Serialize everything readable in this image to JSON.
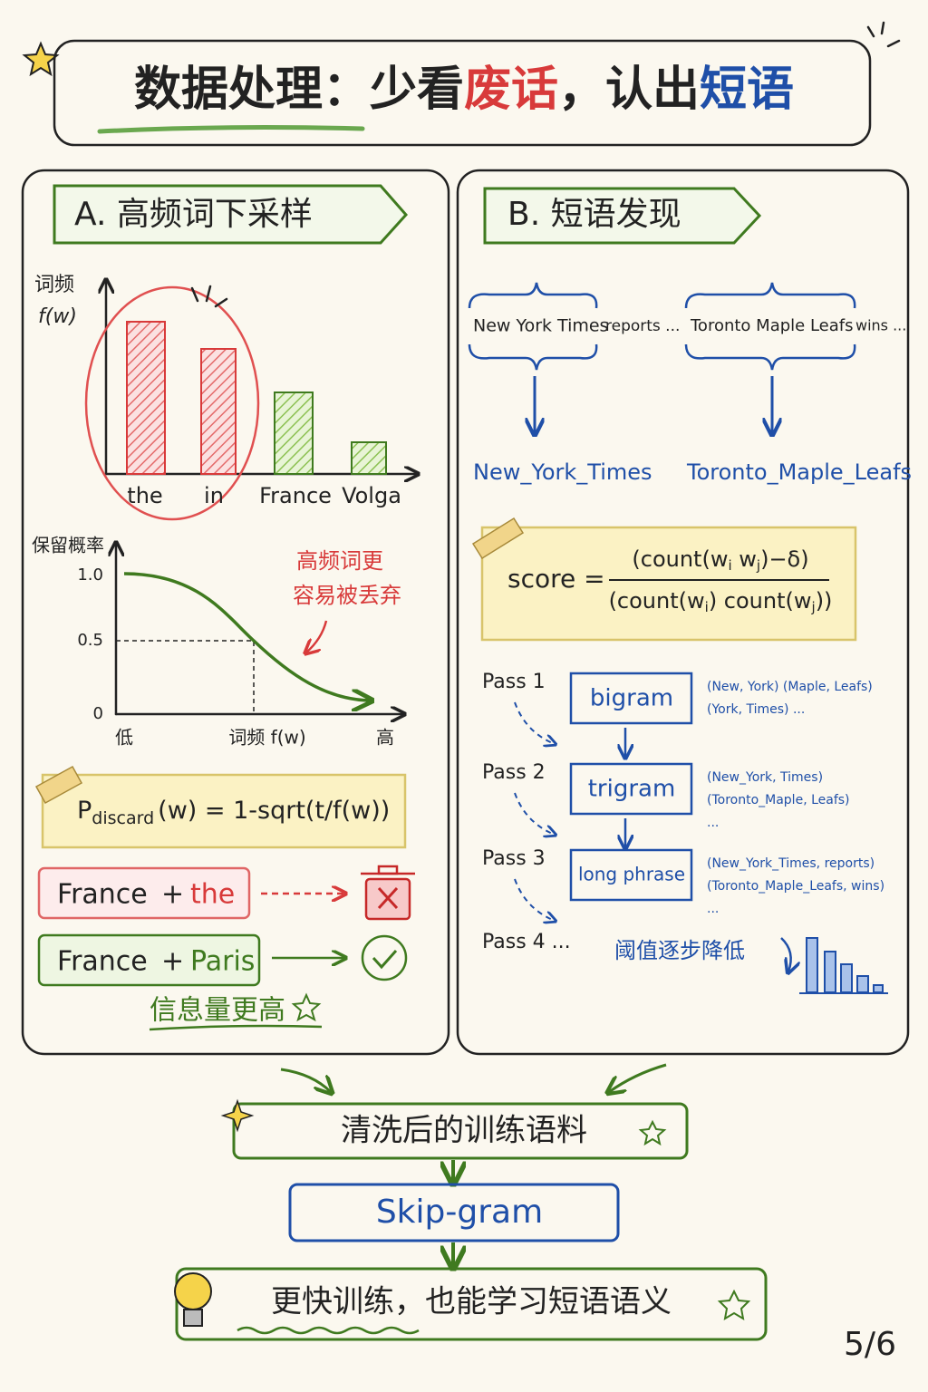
{
  "title": {
    "parts": [
      "数据处理：少看",
      "废话",
      "，认出",
      "短语"
    ]
  },
  "panel_a": {
    "heading": "A. 高频词下采样",
    "bar_chart": {
      "y_label_lines": [
        "词频",
        "f(w)"
      ],
      "categories": [
        "the",
        "in",
        "France",
        "Volga"
      ]
    },
    "curve": {
      "y_label": "保留概率",
      "yticks": [
        "1.0",
        "0.5",
        "0"
      ],
      "x_labels": [
        "低",
        "词频 f(w)",
        "高"
      ],
      "annotation_lines": [
        "高频词更",
        "容易被丢弃"
      ]
    },
    "formula": {
      "main": "P",
      "sub": "discard",
      "rest": "(w) = 1-sqrt(t/f(w))"
    },
    "pairs": [
      {
        "left": "France",
        "plus": "+",
        "right": "the"
      },
      {
        "left": "France",
        "plus": "+",
        "right": "Paris"
      }
    ],
    "note": "信息量更高"
  },
  "panel_b": {
    "heading": "B. 短语发现",
    "phrases": [
      {
        "words": "New York Times",
        "tail": "reports ...",
        "joined": "New_York_Times"
      },
      {
        "words": "Toronto Maple Leafs",
        "tail": "wins ...",
        "joined": "Toronto_Maple_Leafs"
      }
    ],
    "score": {
      "label": "score =",
      "numerator": [
        "(count(w",
        "i",
        " w",
        "j",
        ")−δ)"
      ],
      "denominator": [
        "(count(w",
        "i",
        ") count(w",
        "j",
        "))"
      ]
    },
    "passes": [
      {
        "label": "Pass 1",
        "box": "bigram",
        "examples": [
          "(New, York)  (Maple, Leafs)",
          "(York, Times)  ..."
        ]
      },
      {
        "label": "Pass 2",
        "box": "trigram",
        "examples": [
          "(New_York, Times)",
          "(Toronto_Maple, Leafs)",
          "..."
        ]
      },
      {
        "label": "Pass 3",
        "box": "long phrase",
        "examples": [
          "(New_York_Times, reports)",
          "(Toronto_Maple_Leafs, wins)",
          "..."
        ]
      },
      {
        "label": "Pass 4 ..."
      }
    ],
    "threshold": "阈值逐步降低"
  },
  "flow": [
    "清洗后的训练语料",
    "Skip-gram",
    "更快训练，也能学习短语语义"
  ],
  "page_number": "5/6"
}
